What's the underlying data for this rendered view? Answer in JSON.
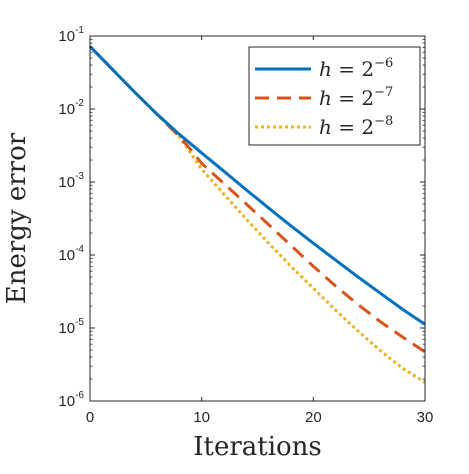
{
  "chart_data": {
    "type": "line",
    "title": "",
    "xlabel": "Iterations",
    "ylabel": "Energy error",
    "xlim": [
      0,
      30
    ],
    "ylim": [
      1e-06,
      0.1
    ],
    "yscale": "log",
    "grid": false,
    "legend_position": "top-right",
    "x_ticks": [
      0,
      10,
      20,
      30
    ],
    "y_ticks": [
      {
        "value": 1e-06,
        "base": "10",
        "exp": "-6"
      },
      {
        "value": 1e-05,
        "base": "10",
        "exp": "-5"
      },
      {
        "value": 0.0001,
        "base": "10",
        "exp": "-4"
      },
      {
        "value": 0.001,
        "base": "10",
        "exp": "-3"
      },
      {
        "value": 0.01,
        "base": "10",
        "exp": "-2"
      },
      {
        "value": 0.1,
        "base": "10",
        "exp": "-1"
      }
    ],
    "series": [
      {
        "name": "h = 2^-6",
        "legend_base": "h = 2",
        "legend_exp": "−6",
        "color": "#0072BD",
        "style": "solid",
        "x": [
          0,
          2,
          4,
          6,
          8,
          10,
          12,
          14,
          16,
          18,
          20,
          22,
          24,
          26,
          28,
          30
        ],
        "y": [
          0.072,
          0.035,
          0.017,
          0.0085,
          0.0045,
          0.0025,
          0.0014,
          0.00078,
          0.00044,
          0.00025,
          0.000145,
          8.5e-05,
          5e-05,
          3e-05,
          1.8e-05,
          1.12e-05
        ]
      },
      {
        "name": "h = 2^-7",
        "legend_base": "h = 2",
        "legend_exp": "−7",
        "color": "#D95319",
        "style": "dashed",
        "x": [
          0,
          2,
          4,
          6,
          8,
          9,
          10,
          12,
          14,
          16,
          18,
          20,
          22,
          24,
          26,
          28,
          30
        ],
        "y": [
          0.072,
          0.035,
          0.017,
          0.0085,
          0.0042,
          0.0028,
          0.0018,
          0.00095,
          0.0005,
          0.00026,
          0.000135,
          7e-05,
          3.75e-05,
          2.1e-05,
          1.22e-05,
          7.5e-06,
          4.7e-06
        ]
      },
      {
        "name": "h = 2^-8",
        "legend_base": "h = 2",
        "legend_exp": "−8",
        "color": "#EDB120",
        "style": "dotted",
        "x": [
          0,
          2,
          4,
          6,
          8,
          9,
          10,
          12,
          14,
          16,
          18,
          20,
          22,
          24,
          26,
          28,
          30
        ],
        "y": [
          0.072,
          0.035,
          0.017,
          0.0085,
          0.0042,
          0.0025,
          0.0015,
          0.00068,
          0.00031,
          0.000145,
          7e-05,
          3.5e-05,
          1.75e-05,
          9.1e-06,
          4.9e-06,
          2.8e-06,
          1.8e-06
        ]
      }
    ]
  }
}
